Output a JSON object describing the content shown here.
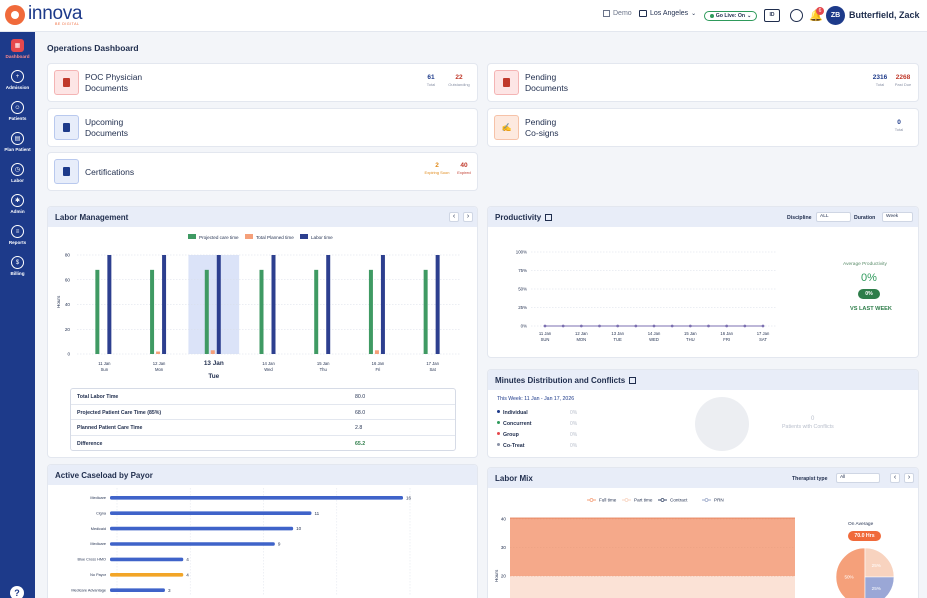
{
  "app": {
    "logo_text": "innova",
    "logo_sub": "BE DIGITAL"
  },
  "header": {
    "demo_label": "Demo",
    "location": "Los Angeles",
    "go_live_label": "Go Live: On",
    "id_card_label": "ID",
    "notification_count": "6",
    "avatar_initials": "ZB",
    "user_name": "Butterfield, Zack"
  },
  "sidebar": {
    "items": [
      {
        "label": "Dashboard",
        "icon": "grid-icon",
        "glyph": "▦"
      },
      {
        "label": "Admission",
        "icon": "user-plus-icon",
        "glyph": "+"
      },
      {
        "label": "Patients",
        "icon": "users-icon",
        "glyph": "☺"
      },
      {
        "label": "Plan Patient",
        "icon": "calendar-icon",
        "glyph": "▤"
      },
      {
        "label": "Labor",
        "icon": "clock-icon",
        "glyph": "◷"
      },
      {
        "label": "Admin",
        "icon": "gear-icon",
        "glyph": "✱"
      },
      {
        "label": "Reports",
        "icon": "report-icon",
        "glyph": "≡"
      },
      {
        "label": "Billing",
        "icon": "dollar-icon",
        "glyph": "$"
      }
    ],
    "help_label": "?"
  },
  "page_title": "Operations Dashboard",
  "cards": {
    "poc": {
      "title_1": "POC Physician",
      "title_2": "Documents",
      "stat1_value": "61",
      "stat1_label": "Total",
      "stat2_value": "22",
      "stat2_label": "Outstanding"
    },
    "pending_docs": {
      "title_1": "Pending",
      "title_2": "Documents",
      "stat1_value": "2316",
      "stat1_label": "Total",
      "stat2_value": "2268",
      "stat2_label": "Past Due"
    },
    "upcoming": {
      "title_1": "Upcoming",
      "title_2": "Documents"
    },
    "pending_cosigns": {
      "title_1": "Pending",
      "title_2": "Co-signs",
      "stat1_value": "0",
      "stat1_label": "Total"
    },
    "certifications": {
      "title": "Certifications",
      "stat1_value": "2",
      "stat1_label": "Expiring Soon",
      "stat2_value": "40",
      "stat2_label": "Expired"
    }
  },
  "labor_management": {
    "title": "Labor Management",
    "prev": "‹",
    "next": "›",
    "table": [
      {
        "label": "Total Labor Time",
        "value": "80.0"
      },
      {
        "label": "Projected Patient Care Time (85%)",
        "value": "68.0"
      },
      {
        "label": "Planned Patient Care Time",
        "value": "2.8"
      },
      {
        "label": "Difference",
        "value": "65.2"
      }
    ]
  },
  "productivity": {
    "title": "Productivity",
    "discipline_label": "Discipline",
    "discipline_value": "ALL",
    "duration_label": "Duration",
    "duration_value": "Week",
    "avg_label": "Average Productivity",
    "avg_value": "0%",
    "pill_value": "0%",
    "vs_label": "VS LAST WEEK"
  },
  "minutes": {
    "title": "Minutes Distribution and Conflicts",
    "week_label": "This Week: 11 Jan - Jan 17, 2026",
    "rows": [
      {
        "label": "Individual",
        "pct": "0%",
        "color": "#1d3a8a"
      },
      {
        "label": "Concurrent",
        "pct": "0%",
        "color": "#2e9a5b"
      },
      {
        "label": "Group",
        "pct": "0%",
        "color": "#e5484d"
      },
      {
        "label": "Co-Treat",
        "pct": "0%",
        "color": "#8a92a6"
      }
    ],
    "conflict_count": "0",
    "conflict_caption": "Patients with Conflicts"
  },
  "caseload": {
    "title": "Active Caseload by Payor"
  },
  "labor_mix": {
    "title": "Labor Mix",
    "therapist_label": "Therapist type",
    "therapist_value": "All",
    "prev": "‹",
    "next": "›",
    "on_average_label": "On Average",
    "on_average_value": "70.0 Hrs"
  },
  "chart_data": [
    {
      "type": "bar",
      "title": "Labor Management",
      "ylabel": "Hours",
      "ylim": [
        0,
        80
      ],
      "yticks": [
        "80",
        "60",
        "40",
        "20",
        "0"
      ],
      "categories": [
        "11 Jan Sun",
        "12 Jan Mon",
        "13 Jan Tue",
        "14 Jan Wed",
        "15 Jan Thu",
        "16 Jan Fri",
        "17 Jan Sat"
      ],
      "tick_dates": [
        "11 Jan",
        "12 Jan",
        "13 Jan",
        "14 Jan",
        "15 Jan",
        "16 Jan",
        "17 Jan"
      ],
      "tick_days": [
        "Sun",
        "Mon",
        "Tue",
        "Wed",
        "Thu",
        "Fri",
        "Sat"
      ],
      "selected_index": 2,
      "legend": [
        "Projected care time",
        "Total Planned time",
        "Labor time"
      ],
      "colors": [
        "#3f9a63",
        "#f5a07a",
        "#2d3f8f"
      ],
      "series": [
        {
          "name": "Projected care time",
          "values": [
            68,
            68,
            68,
            68,
            68,
            68,
            68
          ]
        },
        {
          "name": "Total Planned time",
          "values": [
            0,
            2,
            3,
            0,
            0,
            3,
            0
          ]
        },
        {
          "name": "Labor time",
          "values": [
            80,
            80,
            80,
            80,
            80,
            80,
            80
          ]
        }
      ]
    },
    {
      "type": "line",
      "title": "Productivity",
      "ylim": [
        0,
        100
      ],
      "yticks": [
        "100%",
        "75%",
        "50%",
        "25%",
        "0%"
      ],
      "tick_dates": [
        "11 Jan",
        "12 Jan",
        "13 Jan",
        "14 Jan",
        "15 Jan",
        "16 Jan",
        "17 Jan"
      ],
      "tick_days": [
        "SUN",
        "MON",
        "TUE",
        "WED",
        "THU",
        "FRI",
        "SAT"
      ],
      "color": "#7b6fb0",
      "values": [
        0,
        0,
        0,
        0,
        0,
        0,
        0,
        0,
        0,
        0,
        0,
        0,
        0
      ]
    },
    {
      "type": "bar",
      "title": "Active Caseload by Payor",
      "orientation": "horizontal",
      "categories": [
        "Medicare",
        "Cigna",
        "Medicaid",
        "Medicare",
        "Blue Cross HMO",
        "No Payor",
        "Medicare Advantage"
      ],
      "values": [
        16,
        11,
        10,
        9,
        4,
        4,
        3
      ],
      "colors": [
        "#3f63c9",
        "#3f63c9",
        "#3f63c9",
        "#3f63c9",
        "#3f63c9",
        "#f2a527",
        "#3f63c9"
      ]
    },
    {
      "type": "area",
      "title": "Labor Mix",
      "ylabel": "Hours",
      "yticks": [
        "40",
        "30",
        "20"
      ],
      "legend": [
        "Full time",
        "Part time",
        "Contract",
        "PRN"
      ],
      "colors": [
        "#f5a07a",
        "#f8d3bf",
        "#3a4a6b",
        "#9aa7c8"
      ]
    },
    {
      "type": "pie",
      "title": "Labor Mix share",
      "labels": [
        "Full time",
        "Part time",
        "Contract"
      ],
      "values": [
        50,
        25,
        25
      ],
      "slice_labels": [
        "50%",
        "25%",
        "25%"
      ],
      "colors": [
        "#f5a07a",
        "#f8d3bf",
        "#9aa7d6"
      ]
    }
  ]
}
